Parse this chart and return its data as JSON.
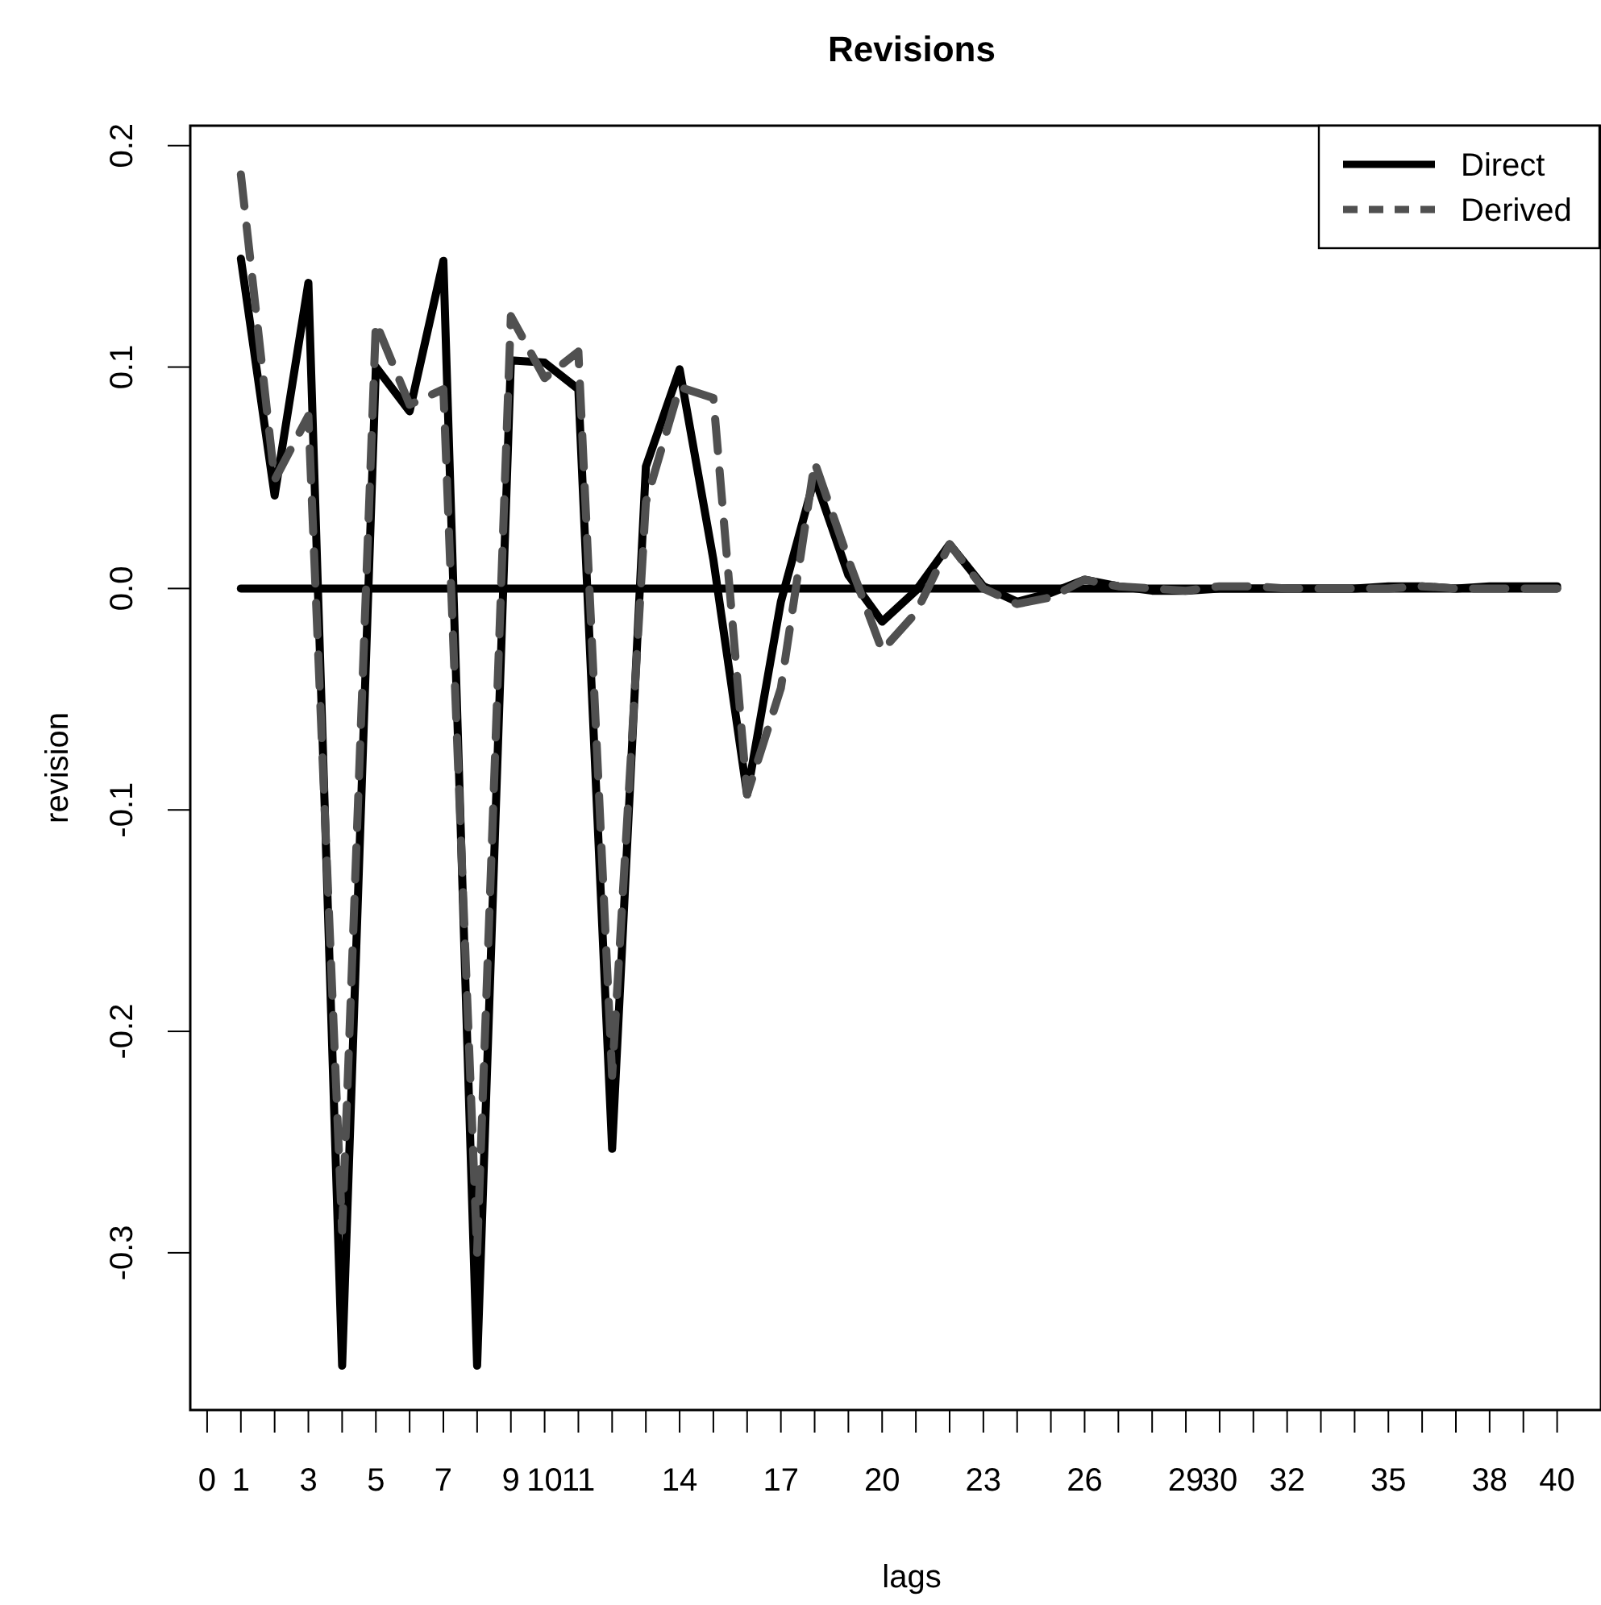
{
  "chart_data": {
    "type": "line",
    "title": "Revisions",
    "xlabel": "lags",
    "ylabel": "revision",
    "xlim": [
      -0.5,
      41.3
    ],
    "ylim": [
      -0.371,
      0.209
    ],
    "xticks": [
      0,
      1,
      {
        "value": 2,
        "label": null
      },
      3,
      {
        "value": 4,
        "label": null
      },
      5,
      {
        "value": 6,
        "label": null
      },
      7,
      {
        "value": 8,
        "label": null
      },
      9,
      10,
      11,
      {
        "value": 12,
        "label": null
      },
      {
        "value": 13,
        "label": null
      },
      14,
      {
        "value": 15,
        "label": null
      },
      {
        "value": 16,
        "label": null
      },
      17,
      {
        "value": 18,
        "label": null
      },
      {
        "value": 19,
        "label": null
      },
      20,
      {
        "value": 21,
        "label": null
      },
      {
        "value": 22,
        "label": null
      },
      23,
      {
        "value": 24,
        "label": null
      },
      {
        "value": 25,
        "label": null
      },
      26,
      {
        "value": 27,
        "label": null
      },
      {
        "value": 28,
        "label": null
      },
      29,
      30,
      {
        "value": 31,
        "label": null
      },
      32,
      {
        "value": 33,
        "label": null
      },
      {
        "value": 34,
        "label": null
      },
      35,
      {
        "value": 36,
        "label": null
      },
      {
        "value": 37,
        "label": null
      },
      38,
      {
        "value": 39,
        "label": null
      },
      40
    ],
    "yticks": [
      -0.3,
      -0.2,
      -0.1,
      {
        "value": 0,
        "label": "0.0"
      },
      0.1,
      0.2
    ],
    "x": [
      1,
      2,
      3,
      4,
      5,
      6,
      7,
      8,
      9,
      10,
      11,
      12,
      13,
      14,
      15,
      16,
      17,
      18,
      19,
      20,
      21,
      22,
      23,
      24,
      25,
      26,
      27,
      28,
      29,
      30,
      31,
      32,
      33,
      34,
      35,
      36,
      37,
      38,
      39,
      40
    ],
    "series": [
      {
        "color": "#000000",
        "line_style": "solid",
        "x": [
          1,
          40
        ],
        "values": [
          0,
          0
        ]
      },
      {
        "name": "Direct",
        "color": "#000000",
        "line_style": "solid",
        "values": [
          0.149,
          0.042,
          0.138,
          -0.351,
          0.1,
          0.08,
          0.148,
          -0.351,
          0.103,
          0.102,
          0.09,
          -0.253,
          0.055,
          0.099,
          0.013,
          -0.093,
          -0.006,
          0.05,
          0.006,
          -0.015,
          -0.001,
          0.02,
          0.001,
          -0.006,
          -0.002,
          0.004,
          0.001,
          -0.001,
          -0.001,
          0,
          0,
          0,
          0,
          0,
          0.001,
          0.001,
          0,
          0.001,
          0.001,
          0.001
        ]
      },
      {
        "name": "Derived",
        "color": "#505050",
        "line_style": "dashed",
        "values": [
          0.187,
          0.049,
          0.078,
          -0.29,
          0.12,
          0.083,
          0.09,
          -0.3,
          0.123,
          0.095,
          0.107,
          -0.22,
          0.039,
          0.091,
          0.086,
          -0.093,
          -0.045,
          0.057,
          0.013,
          -0.028,
          -0.011,
          0.02,
          0,
          -0.007,
          -0.004,
          0.004,
          0.001,
          0,
          -0.001,
          0.001,
          0.001,
          0,
          0,
          0,
          0,
          0.001,
          0,
          0,
          0,
          0
        ]
      }
    ],
    "legend": "top right",
    "grid": false
  }
}
